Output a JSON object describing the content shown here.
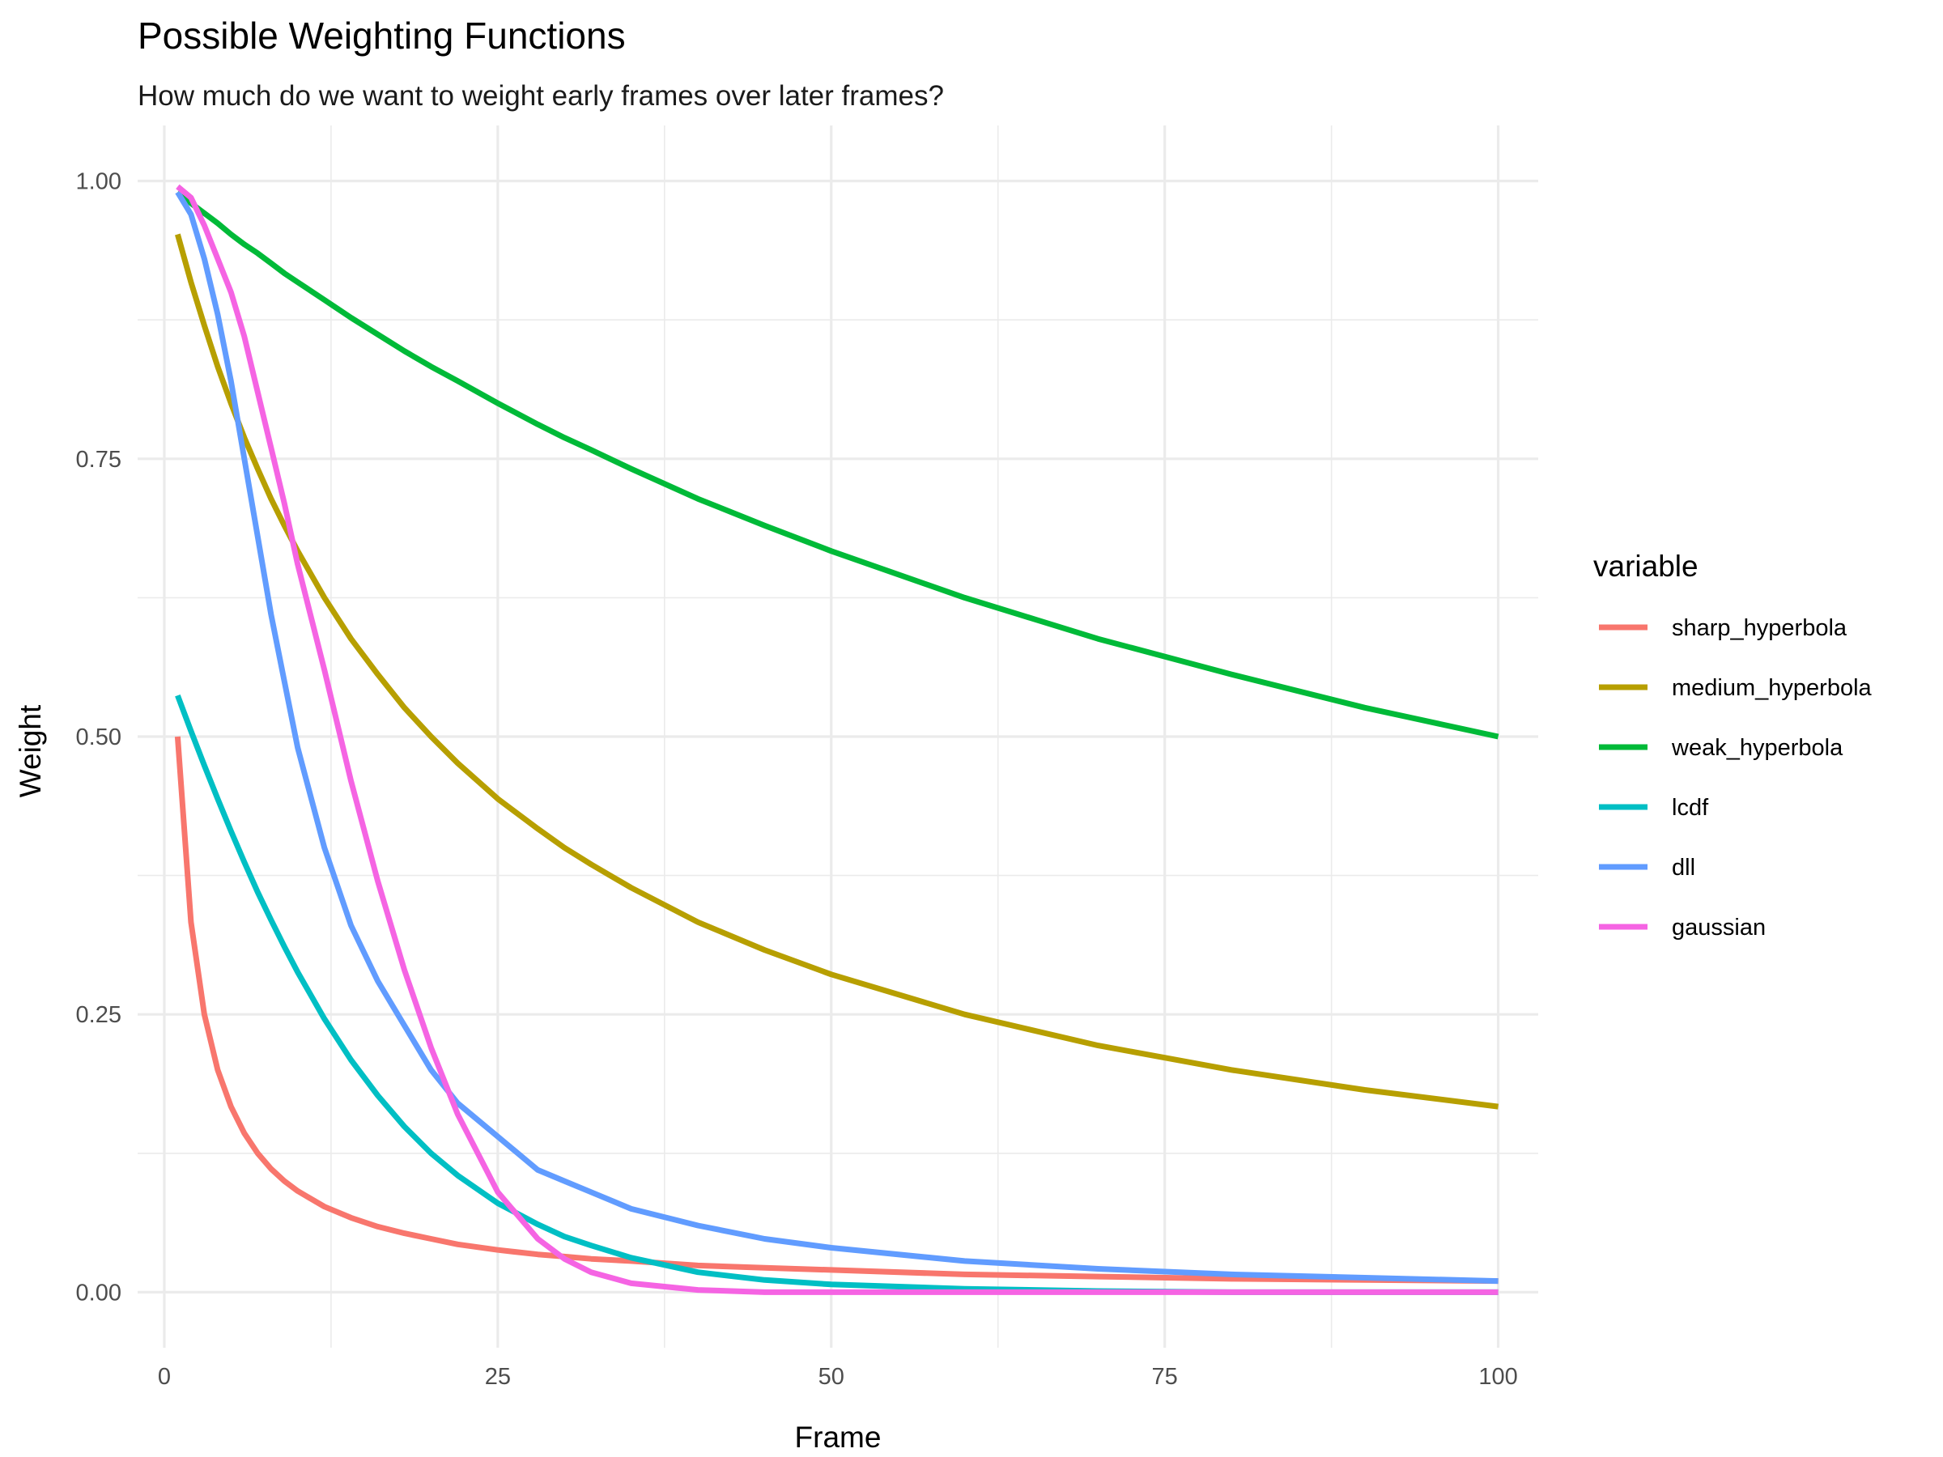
{
  "chart_data": {
    "type": "line",
    "title": "Possible Weighting Functions",
    "subtitle": "How much do we want to weight early frames over later frames?",
    "xlabel": "Frame",
    "ylabel": "Weight",
    "xlim": [
      -2,
      103
    ],
    "ylim": [
      -0.05,
      1.05
    ],
    "x_ticks": [
      0,
      25,
      50,
      75,
      100
    ],
    "x_tick_labels": [
      "0",
      "25",
      "50",
      "75",
      "100"
    ],
    "y_ticks": [
      0,
      0.25,
      0.5,
      0.75,
      1
    ],
    "y_tick_labels": [
      "0.00",
      "0.25",
      "0.50",
      "0.75",
      "1.00"
    ],
    "grid": true,
    "legend": {
      "title": "variable",
      "position": "right"
    },
    "x": [
      1,
      2,
      3,
      4,
      5,
      6,
      7,
      8,
      9,
      10,
      12,
      14,
      16,
      18,
      20,
      22,
      25,
      28,
      30,
      32,
      35,
      40,
      45,
      50,
      60,
      70,
      80,
      90,
      100
    ],
    "series": [
      {
        "name": "sharp_hyperbola",
        "color": "#F8766D",
        "values": [
          0.5,
          0.333,
          0.25,
          0.2,
          0.167,
          0.143,
          0.125,
          0.111,
          0.1,
          0.091,
          0.077,
          0.067,
          0.059,
          0.053,
          0.048,
          0.043,
          0.038,
          0.034,
          0.032,
          0.03,
          0.028,
          0.024,
          0.022,
          0.02,
          0.016,
          0.014,
          0.012,
          0.011,
          0.01
        ]
      },
      {
        "name": "medium_hyperbola",
        "color": "#B79F00",
        "values": [
          0.952,
          0.909,
          0.87,
          0.833,
          0.8,
          0.769,
          0.741,
          0.714,
          0.69,
          0.667,
          0.625,
          0.588,
          0.556,
          0.526,
          0.5,
          0.476,
          0.444,
          0.417,
          0.4,
          0.385,
          0.364,
          0.333,
          0.308,
          0.286,
          0.25,
          0.222,
          0.2,
          0.182,
          0.167
        ]
      },
      {
        "name": "weak_hyperbola",
        "color": "#00BA38",
        "values": [
          0.99,
          0.98,
          0.971,
          0.962,
          0.952,
          0.943,
          0.935,
          0.926,
          0.917,
          0.909,
          0.893,
          0.877,
          0.862,
          0.847,
          0.833,
          0.82,
          0.8,
          0.781,
          0.769,
          0.758,
          0.741,
          0.714,
          0.69,
          0.667,
          0.625,
          0.588,
          0.556,
          0.526,
          0.5
        ]
      },
      {
        "name": "lcdf",
        "color": "#00BFC4",
        "values": [
          0.537,
          0.505,
          0.474,
          0.444,
          0.415,
          0.387,
          0.36,
          0.335,
          0.311,
          0.288,
          0.246,
          0.209,
          0.177,
          0.149,
          0.125,
          0.105,
          0.08,
          0.061,
          0.05,
          0.042,
          0.031,
          0.018,
          0.011,
          0.007,
          0.003,
          0.001,
          0.0,
          0.0,
          0.0
        ]
      },
      {
        "name": "dll",
        "color": "#619CFF",
        "values": [
          0.99,
          0.97,
          0.93,
          0.88,
          0.82,
          0.75,
          0.68,
          0.61,
          0.55,
          0.49,
          0.4,
          0.33,
          0.28,
          0.24,
          0.2,
          0.17,
          0.14,
          0.11,
          0.1,
          0.09,
          0.075,
          0.06,
          0.048,
          0.04,
          0.028,
          0.021,
          0.016,
          0.013,
          0.01
        ]
      },
      {
        "name": "gaussian",
        "color": "#F564E3",
        "values": [
          0.995,
          0.985,
          0.96,
          0.93,
          0.9,
          0.86,
          0.81,
          0.76,
          0.71,
          0.655,
          0.56,
          0.46,
          0.37,
          0.29,
          0.22,
          0.16,
          0.09,
          0.048,
          0.03,
          0.018,
          0.008,
          0.002,
          0.0,
          0.0,
          0.0,
          0.0,
          0.0,
          0.0,
          0.0
        ]
      }
    ]
  }
}
